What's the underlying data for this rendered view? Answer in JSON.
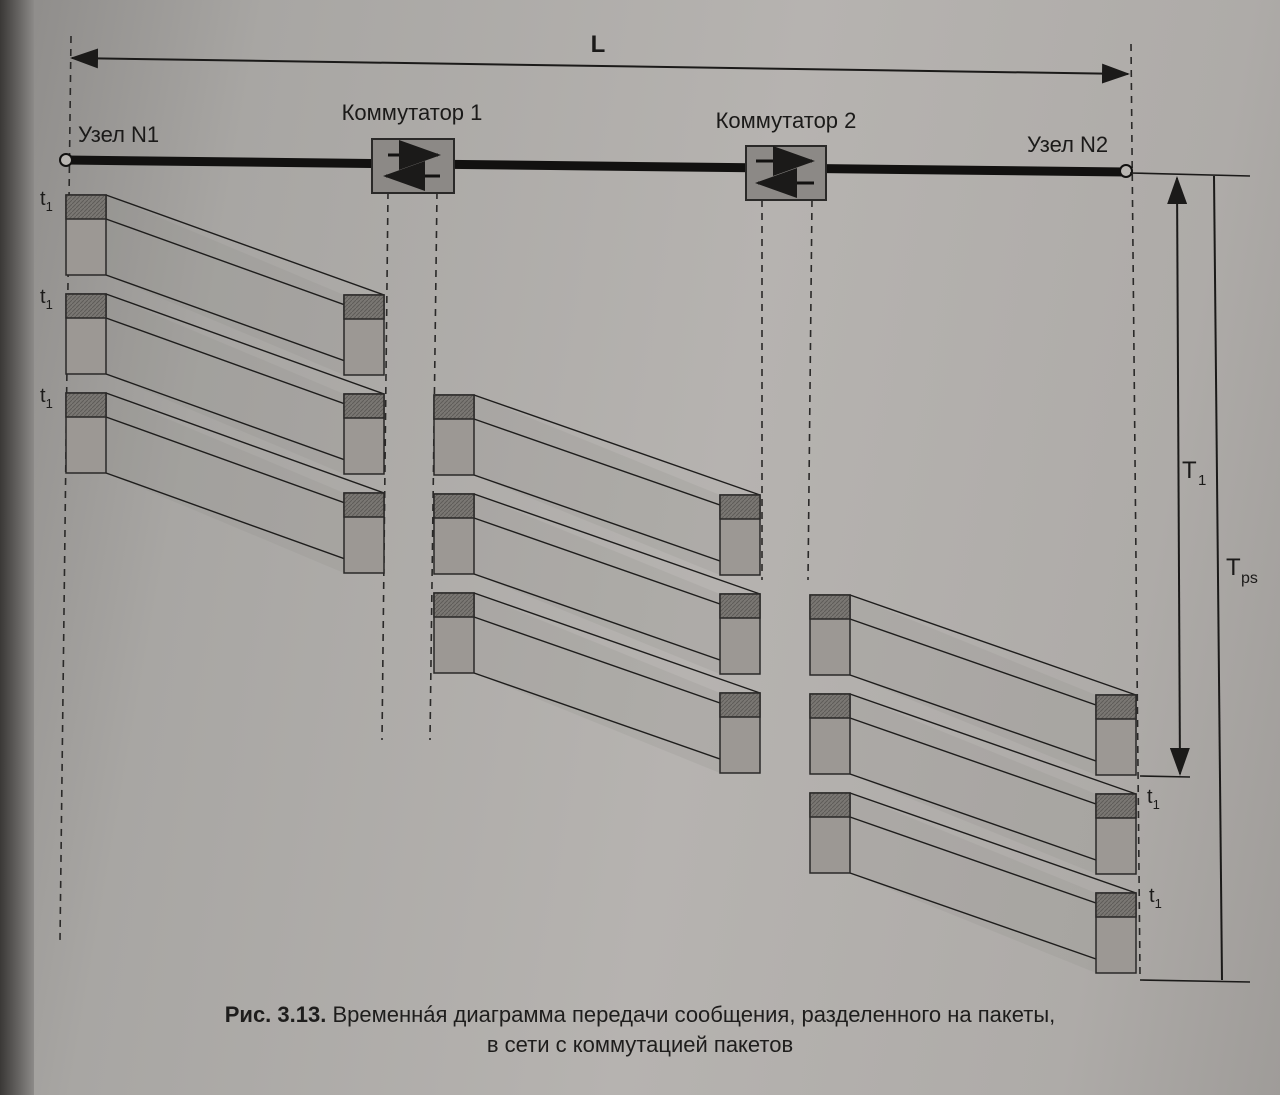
{
  "diagram": {
    "length_label": "L",
    "node1_label": "Узел N1",
    "node2_label": "Узел N2",
    "switch1_label": "Коммутатор 1",
    "switch2_label": "Коммутатор 2",
    "packet_interval_label": "t",
    "packet_interval_sub": "1",
    "T1_label": "T",
    "T1_sub": "1",
    "Tps_label": "T",
    "Tps_sub": "ps"
  },
  "caption": {
    "figure_number": "Рис. 3.13.",
    "line1": "Временнáя диаграмма передачи сообщения, разделенного на пакеты,",
    "line2": "в сети с коммутацией пакетов"
  }
}
